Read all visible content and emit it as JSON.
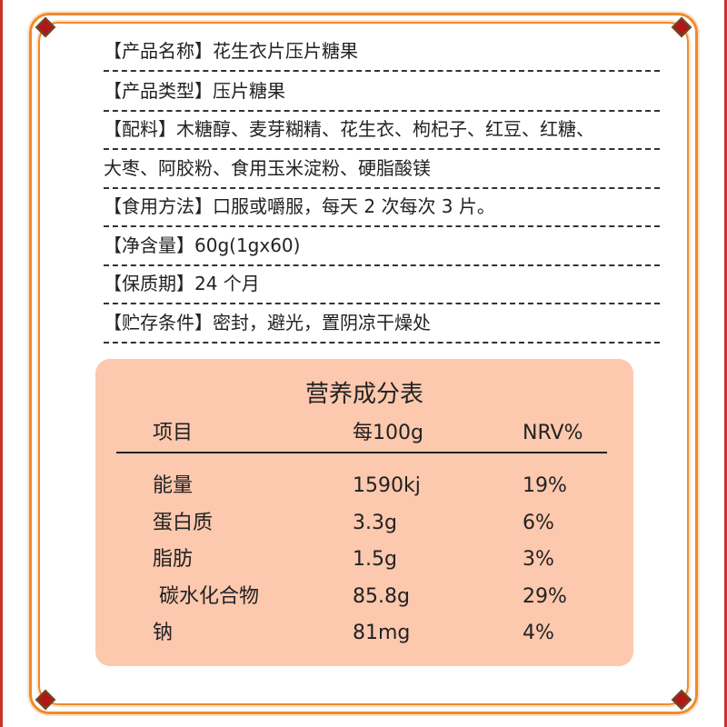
{
  "info_rows": [
    "【产品名称】花生衣片压片糖果",
    "【产品类型】压片糖果",
    "【配料】木糖醇、麦芽糊精、花生衣、枸杞子、红豆、红糖、",
    "大枣、阿胶粉、食用玉米淀粉、硬脂酸镁",
    "【食用方法】口服或嚼服，每天 2 次每次 3 片。",
    "【净含量】60g(1gx60)",
    "【保质期】24 个月",
    "【贮存条件】密封，避光，置阴凉干燥处"
  ],
  "nutrition": {
    "title": "营养成分表",
    "headers": [
      "项目",
      "每100g",
      "NRV%"
    ],
    "rows": [
      [
        "能量",
        "1590kj",
        "19%"
      ],
      [
        "蛋白质",
        "3.3g",
        "6%"
      ],
      [
        "脂肪",
        "1.5g",
        "3%"
      ],
      [
        " 碳水化合物",
        "85.8g",
        "29%"
      ],
      [
        "钠",
        "81mg",
        "4%"
      ]
    ]
  },
  "colors": {
    "frame": "#f08a2c",
    "table_bg": "#fcc8ae",
    "ornament": "#b01818"
  }
}
